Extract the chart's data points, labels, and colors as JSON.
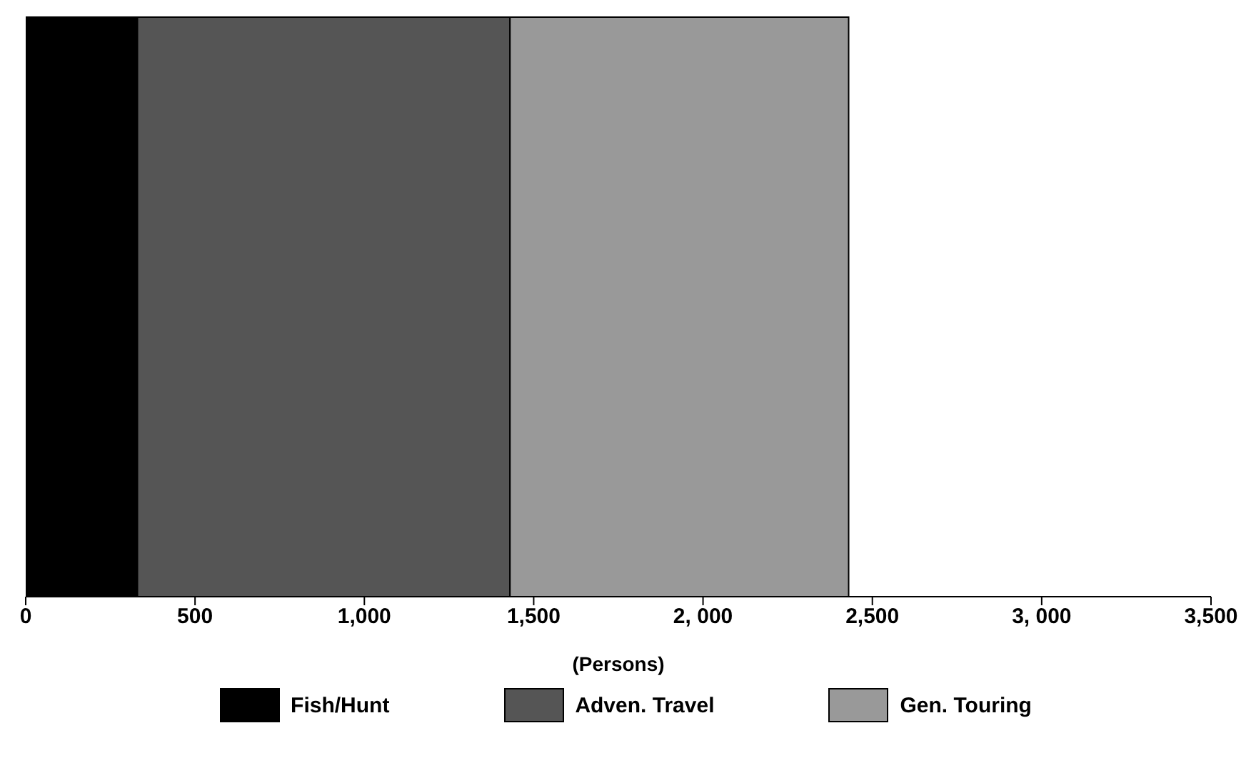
{
  "chart_data": {
    "type": "bar",
    "orientation": "horizontal",
    "stacked": true,
    "categories": [
      null
    ],
    "xlabel": "(Persons)",
    "series": [
      {
        "name": "Fish/Hunt",
        "color": "#000000",
        "values": [
          330
        ]
      },
      {
        "name": "Adven. Travel",
        "color": "#555555",
        "values": [
          1100
        ]
      },
      {
        "name": "Gen. Touring",
        "color": "#999999",
        "values": [
          1000
        ]
      }
    ],
    "xlim": [
      0,
      3500
    ],
    "xticks": [
      0,
      500,
      {
        "value": 1000,
        "label": "1,000"
      },
      {
        "value": 1500,
        "label": "1,500"
      },
      {
        "value": 2000,
        "label": "2, 000"
      },
      {
        "value": 2500,
        "label": "2,500"
      },
      {
        "value": 3000,
        "label": "3, 000"
      },
      {
        "value": 3500,
        "label": "3,500"
      }
    ],
    "grid": false,
    "legend": "bottom",
    "tick_labels": "x"
  }
}
